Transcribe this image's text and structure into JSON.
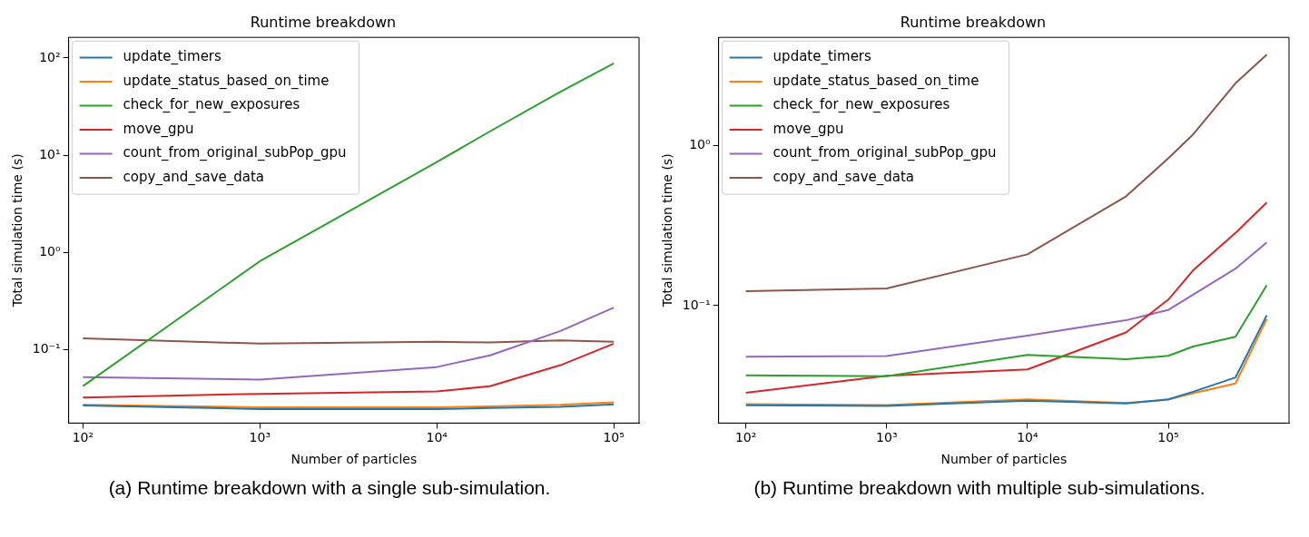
{
  "chart_data": [
    {
      "type": "line",
      "title": "Runtime breakdown",
      "xlabel": "Number of particles",
      "ylabel": "Total simulation time (s)",
      "log": "xy",
      "grid": false,
      "legend": "top left",
      "line_style": "solid",
      "marker": "none",
      "x": [
        100,
        1000,
        10000,
        20000,
        50000,
        100000
      ],
      "xlim": [
        83,
        139000
      ],
      "xticks": [
        {
          "value": 100,
          "label": "10²"
        },
        {
          "value": 1000,
          "label": "10³"
        },
        {
          "value": 10000,
          "label": "10⁴"
        },
        {
          "value": 100000,
          "label": "10⁵"
        }
      ],
      "ylim": [
        0.0175,
        163
      ],
      "yticks": [
        {
          "value": 0.1,
          "label": "10⁻¹"
        },
        {
          "value": 1,
          "label": "10⁰"
        },
        {
          "value": 10,
          "label": "10¹"
        },
        {
          "value": 100,
          "label": "10²"
        }
      ],
      "series": [
        {
          "name": "update_timers",
          "color": "#1f77b4",
          "values": [
            0.0265,
            0.0244,
            0.0244,
            0.025,
            0.0257,
            0.0273
          ]
        },
        {
          "name": "update_status_based_on_time",
          "color": "#ff7f0e",
          "values": [
            0.027,
            0.0255,
            0.0255,
            0.026,
            0.027,
            0.0287
          ]
        },
        {
          "name": "check_for_new_exposures",
          "color": "#2ca02c",
          "values": [
            0.042,
            0.81,
            8.5,
            17.6,
            45,
            88
          ]
        },
        {
          "name": "move_gpu",
          "color": "#d62728",
          "values": [
            0.032,
            0.035,
            0.037,
            0.042,
            0.069,
            0.115
          ]
        },
        {
          "name": "count_from_original_subPop_gpu",
          "color": "#9467bd",
          "values": [
            0.052,
            0.049,
            0.066,
            0.087,
            0.155,
            0.27
          ]
        },
        {
          "name": "copy_and_save_data",
          "color": "#8c564b",
          "values": [
            0.13,
            0.115,
            0.12,
            0.118,
            0.124,
            0.12
          ]
        }
      ],
      "annotations": [
        "(a) Runtime breakdown with a single sub-simulation."
      ]
    },
    {
      "type": "line",
      "title": "Runtime breakdown",
      "xlabel": "Number of particles",
      "ylabel": "Total simulation time (s)",
      "log": "xy",
      "grid": false,
      "legend": "top left",
      "line_style": "solid",
      "marker": "none",
      "x": [
        100,
        1000,
        10000,
        50000,
        100000,
        150000,
        300000,
        500000
      ],
      "xlim": [
        64,
        720000
      ],
      "xticks": [
        {
          "value": 100,
          "label": "10²"
        },
        {
          "value": 1000,
          "label": "10³"
        },
        {
          "value": 10000,
          "label": "10⁴"
        },
        {
          "value": 100000,
          "label": "10⁵"
        }
      ],
      "ylim": [
        0.0185,
        4.72
      ],
      "yticks": [
        {
          "value": 0.1,
          "label": "10⁻¹"
        },
        {
          "value": 1,
          "label": "10⁰"
        }
      ],
      "series": [
        {
          "name": "update_timers",
          "color": "#1f77b4",
          "values": [
            0.0239,
            0.0237,
            0.0255,
            0.0245,
            0.026,
            0.029,
            0.0356,
            0.087
          ]
        },
        {
          "name": "update_status_based_on_time",
          "color": "#ff7f0e",
          "values": [
            0.0243,
            0.024,
            0.026,
            0.0247,
            0.0259,
            0.0284,
            0.0327,
            0.0824
          ]
        },
        {
          "name": "check_for_new_exposures",
          "color": "#2ca02c",
          "values": [
            0.0368,
            0.0363,
            0.0493,
            0.0463,
            0.0486,
            0.0556,
            0.064,
            0.134
          ]
        },
        {
          "name": "move_gpu",
          "color": "#d62728",
          "values": [
            0.0286,
            0.0365,
            0.04,
            0.068,
            0.109,
            0.166,
            0.284,
            0.44
          ]
        },
        {
          "name": "count_from_original_subPop_gpu",
          "color": "#9467bd",
          "values": [
            0.048,
            0.0485,
            0.065,
            0.081,
            0.094,
            0.117,
            0.17,
            0.248
          ]
        },
        {
          "name": "copy_and_save_data",
          "color": "#8c564b",
          "values": [
            0.123,
            0.128,
            0.209,
            0.48,
            0.83,
            1.17,
            2.44,
            3.68
          ]
        }
      ],
      "annotations": [
        "(b) Runtime breakdown with multiple sub-simulations."
      ]
    }
  ]
}
